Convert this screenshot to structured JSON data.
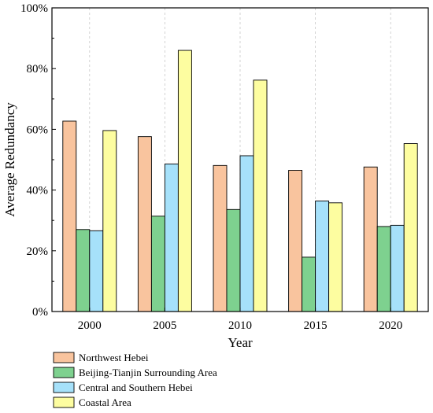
{
  "chart_data": {
    "type": "bar",
    "title": "",
    "xlabel": "Year",
    "ylabel": "Average Redundancy",
    "categories": [
      "2000",
      "2005",
      "2010",
      "2015",
      "2020"
    ],
    "ylim": [
      0,
      100
    ],
    "yticks": [
      0,
      20,
      40,
      60,
      80,
      100
    ],
    "ytick_labels": [
      "0%",
      "20%",
      "40%",
      "60%",
      "80%",
      "100%"
    ],
    "grid": "vertical dashed at category centers",
    "legend_position": "bottom",
    "series": [
      {
        "name": "Northwest Hebei",
        "color": "#F9C49E",
        "values": [
          62.7,
          57.6,
          48.1,
          46.5,
          47.6
        ]
      },
      {
        "name": "Beijing-Tianjin Surrounding Area",
        "color": "#7ED18F",
        "values": [
          27.0,
          31.4,
          33.6,
          17.9,
          28.0
        ]
      },
      {
        "name": "Central and Southern Hebei",
        "color": "#A6E1FA",
        "values": [
          26.6,
          48.6,
          51.3,
          36.4,
          28.4
        ]
      },
      {
        "name": "Coastal Area",
        "color": "#FDFDA0",
        "values": [
          59.6,
          86.0,
          76.2,
          35.8,
          55.3
        ]
      }
    ]
  }
}
